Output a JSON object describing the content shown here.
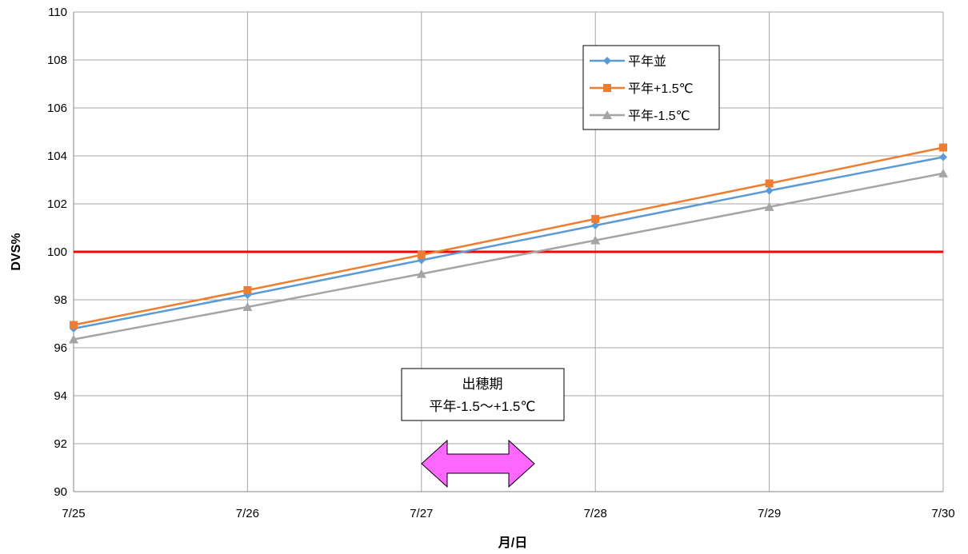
{
  "chart_data": {
    "type": "line",
    "x": [
      "7/25",
      "7/26",
      "7/27",
      "7/28",
      "7/29",
      "7/30"
    ],
    "xlabel": "月/日",
    "ylabel": "DVS%",
    "ylim": [
      90,
      110
    ],
    "yticks": [
      90,
      92,
      94,
      96,
      98,
      100,
      102,
      104,
      106,
      108,
      110
    ],
    "grid": true,
    "legend": "top-right",
    "series": [
      {
        "name": "平年並",
        "color": "#5B9BD5",
        "marker": "diamond",
        "values": [
          96.8,
          98.2,
          99.65,
          101.1,
          102.55,
          103.95
        ]
      },
      {
        "name": "平年+1.5℃",
        "color": "#ED7D31",
        "marker": "square",
        "values": [
          96.95,
          98.4,
          99.87,
          101.37,
          102.85,
          104.35
        ]
      },
      {
        "name": "平年-1.5℃",
        "color": "#A5A5A5",
        "marker": "triangle",
        "values": [
          96.35,
          97.7,
          99.08,
          100.48,
          101.87,
          103.27
        ]
      }
    ],
    "reference_line": {
      "value": 100,
      "color": "#FF0000"
    },
    "annotation": {
      "line1": "出穂期",
      "line2": "平年-1.5～+1.5℃",
      "range_x": [
        7.15,
        7.65
      ],
      "arrow_color": "#FF66FF"
    }
  }
}
